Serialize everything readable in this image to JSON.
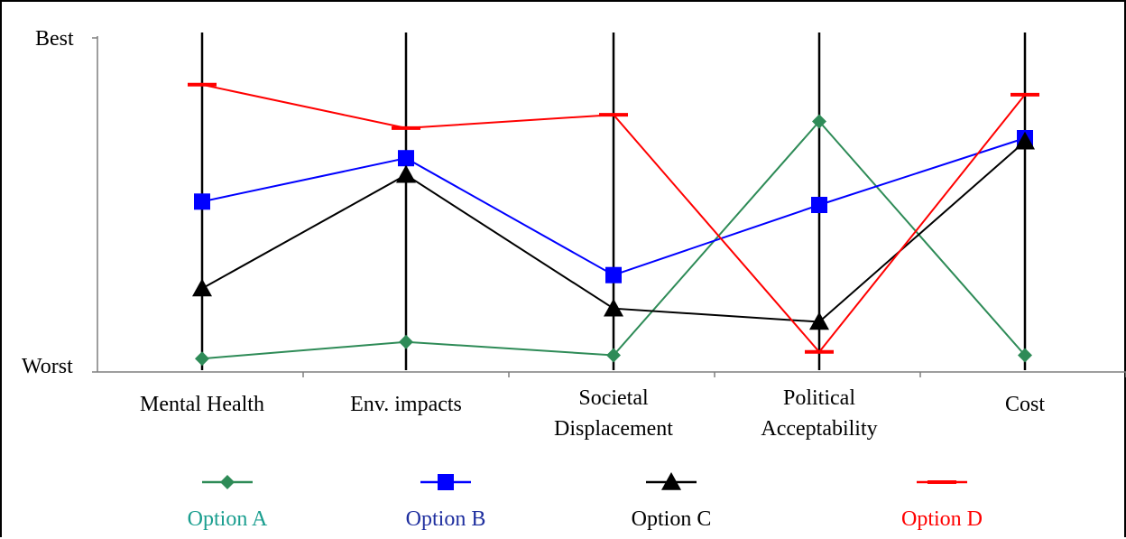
{
  "chart_data": {
    "type": "line",
    "categories": [
      [
        "Mental Health"
      ],
      [
        "Env. impacts"
      ],
      [
        "Societal",
        "Displacement"
      ],
      [
        "Political",
        "Acceptability"
      ],
      [
        "Cost"
      ]
    ],
    "y_tick_labels": {
      "top": "Best",
      "bottom": "Worst"
    },
    "ylim": [
      0,
      1
    ],
    "grid": false,
    "legend_position": "bottom",
    "series": [
      {
        "name": "Option A",
        "color": "#2e8b57",
        "label_color": "#1a9e8f",
        "marker": "diamond",
        "values": [
          0.04,
          0.09,
          0.05,
          0.75,
          0.05
        ]
      },
      {
        "name": "Option B",
        "color": "#0000ff",
        "label_color": "#1f2f9f",
        "marker": "square",
        "values": [
          0.51,
          0.64,
          0.29,
          0.5,
          0.7
        ]
      },
      {
        "name": "Option C",
        "color": "#000000",
        "label_color": "#000000",
        "marker": "triangle",
        "values": [
          0.25,
          0.59,
          0.19,
          0.15,
          0.69
        ]
      },
      {
        "name": "Option D",
        "color": "#ff0000",
        "label_color": "#ff0000",
        "marker": "dash",
        "values": [
          0.86,
          0.73,
          0.77,
          0.06,
          0.83
        ]
      }
    ]
  }
}
